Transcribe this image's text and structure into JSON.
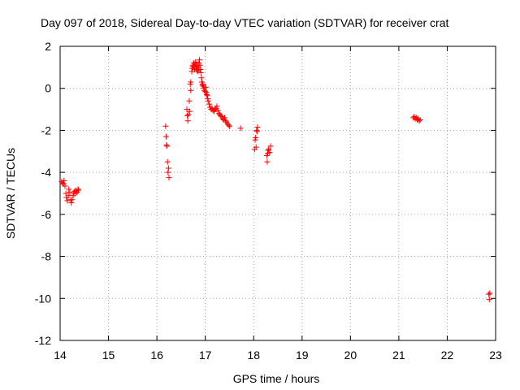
{
  "chart_data": {
    "type": "scatter",
    "title": "Day 097 of 2018, Sidereal Day-to-day VTEC variation (SDTVAR) for receiver crat",
    "xlabel": "GPS time / hours",
    "ylabel": "SDTVAR / TECUs",
    "xlim": [
      14,
      23
    ],
    "ylim": [
      -12,
      2
    ],
    "x_ticks": [
      14,
      15,
      16,
      17,
      18,
      19,
      20,
      21,
      22,
      23
    ],
    "y_ticks": [
      2,
      0,
      -2,
      -4,
      -6,
      -8,
      -10,
      -12
    ],
    "x_tick_labels": [
      "14",
      "15",
      "16",
      "17",
      "18",
      "19",
      "20",
      "21",
      "22",
      "23"
    ],
    "y_tick_labels": [
      "2",
      "0",
      "-2",
      "-4",
      "-6",
      "-8",
      "-10",
      "-12"
    ],
    "grid": true,
    "marker": "+",
    "color": "#ff0000",
    "series": [
      {
        "name": "SDTVAR",
        "points": [
          [
            14.03,
            -4.45
          ],
          [
            14.05,
            -4.5
          ],
          [
            14.07,
            -4.55
          ],
          [
            14.08,
            -4.4
          ],
          [
            14.1,
            -4.65
          ],
          [
            14.12,
            -5.0
          ],
          [
            14.13,
            -5.2
          ],
          [
            14.15,
            -5.35
          ],
          [
            14.17,
            -5.1
          ],
          [
            14.18,
            -4.8
          ],
          [
            14.2,
            -4.95
          ],
          [
            14.22,
            -5.3
          ],
          [
            14.23,
            -5.45
          ],
          [
            14.25,
            -5.3
          ],
          [
            14.27,
            -5.1
          ],
          [
            14.28,
            -5.0
          ],
          [
            14.3,
            -4.9
          ],
          [
            14.32,
            -5.0
          ],
          [
            14.33,
            -4.85
          ],
          [
            14.35,
            -4.95
          ],
          [
            14.37,
            -4.8
          ],
          [
            14.38,
            -4.85
          ],
          [
            16.18,
            -1.8
          ],
          [
            16.19,
            -2.3
          ],
          [
            16.2,
            -2.7
          ],
          [
            16.21,
            -2.75
          ],
          [
            16.22,
            -3.5
          ],
          [
            16.23,
            -4.0
          ],
          [
            16.24,
            -3.8
          ],
          [
            16.25,
            -4.25
          ],
          [
            16.62,
            -1.0
          ],
          [
            16.63,
            -1.3
          ],
          [
            16.64,
            -1.55
          ],
          [
            16.65,
            -1.25
          ],
          [
            16.67,
            -0.6
          ],
          [
            16.68,
            -1.1
          ],
          [
            16.69,
            0.2
          ],
          [
            16.7,
            -0.1
          ],
          [
            16.7,
            0.3
          ],
          [
            16.72,
            0.8
          ],
          [
            16.73,
            0.95
          ],
          [
            16.74,
            1.05
          ],
          [
            16.75,
            1.1
          ],
          [
            16.76,
            1.2
          ],
          [
            16.77,
            1.0
          ],
          [
            16.78,
            0.9
          ],
          [
            16.79,
            1.15
          ],
          [
            16.8,
            1.25
          ],
          [
            16.81,
            1.05
          ],
          [
            16.82,
            0.95
          ],
          [
            16.83,
            0.85
          ],
          [
            16.84,
            1.1
          ],
          [
            16.85,
            0.8
          ],
          [
            16.86,
            1.0
          ],
          [
            16.87,
            1.2
          ],
          [
            16.88,
            1.35
          ],
          [
            16.89,
            1.1
          ],
          [
            16.9,
            0.9
          ],
          [
            16.91,
            0.75
          ],
          [
            16.92,
            0.5
          ],
          [
            16.93,
            0.3
          ],
          [
            16.94,
            0.15
          ],
          [
            16.95,
            0.2
          ],
          [
            16.96,
            0.1
          ],
          [
            16.97,
            0.0
          ],
          [
            16.98,
            -0.1
          ],
          [
            17.0,
            -0.15
          ],
          [
            17.01,
            0.05
          ],
          [
            17.02,
            -0.2
          ],
          [
            17.03,
            -0.3
          ],
          [
            17.04,
            -0.35
          ],
          [
            17.05,
            -0.5
          ],
          [
            17.06,
            -0.6
          ],
          [
            17.08,
            -0.75
          ],
          [
            17.1,
            -0.9
          ],
          [
            17.12,
            -1.0
          ],
          [
            17.14,
            -0.95
          ],
          [
            17.16,
            -1.05
          ],
          [
            17.18,
            -1.1
          ],
          [
            17.2,
            -1.0
          ],
          [
            17.22,
            -0.95
          ],
          [
            17.24,
            -0.85
          ],
          [
            17.26,
            -1.05
          ],
          [
            17.28,
            -1.2
          ],
          [
            17.3,
            -1.25
          ],
          [
            17.32,
            -1.3
          ],
          [
            17.34,
            -1.35
          ],
          [
            17.36,
            -1.45
          ],
          [
            17.38,
            -1.5
          ],
          [
            17.4,
            -1.4
          ],
          [
            17.42,
            -1.55
          ],
          [
            17.44,
            -1.6
          ],
          [
            17.46,
            -1.7
          ],
          [
            17.48,
            -1.75
          ],
          [
            17.5,
            -1.8
          ],
          [
            17.73,
            -1.9
          ],
          [
            18.02,
            -2.9
          ],
          [
            18.03,
            -2.45
          ],
          [
            18.04,
            -2.35
          ],
          [
            18.05,
            -2.8
          ],
          [
            18.06,
            -2.0
          ],
          [
            18.07,
            -2.05
          ],
          [
            18.08,
            -1.85
          ],
          [
            18.27,
            -3.2
          ],
          [
            18.28,
            -3.5
          ],
          [
            18.29,
            -3.1
          ],
          [
            18.3,
            -2.95
          ],
          [
            18.31,
            -2.9
          ],
          [
            18.33,
            -3.05
          ],
          [
            18.35,
            -2.75
          ],
          [
            21.3,
            -1.4
          ],
          [
            21.32,
            -1.35
          ],
          [
            21.34,
            -1.45
          ],
          [
            21.36,
            -1.4
          ],
          [
            21.38,
            -1.5
          ],
          [
            21.4,
            -1.45
          ],
          [
            21.42,
            -1.55
          ],
          [
            21.44,
            -1.5
          ],
          [
            22.86,
            -9.8
          ],
          [
            22.87,
            -10.05
          ],
          [
            22.88,
            -9.75
          ]
        ]
      }
    ]
  }
}
